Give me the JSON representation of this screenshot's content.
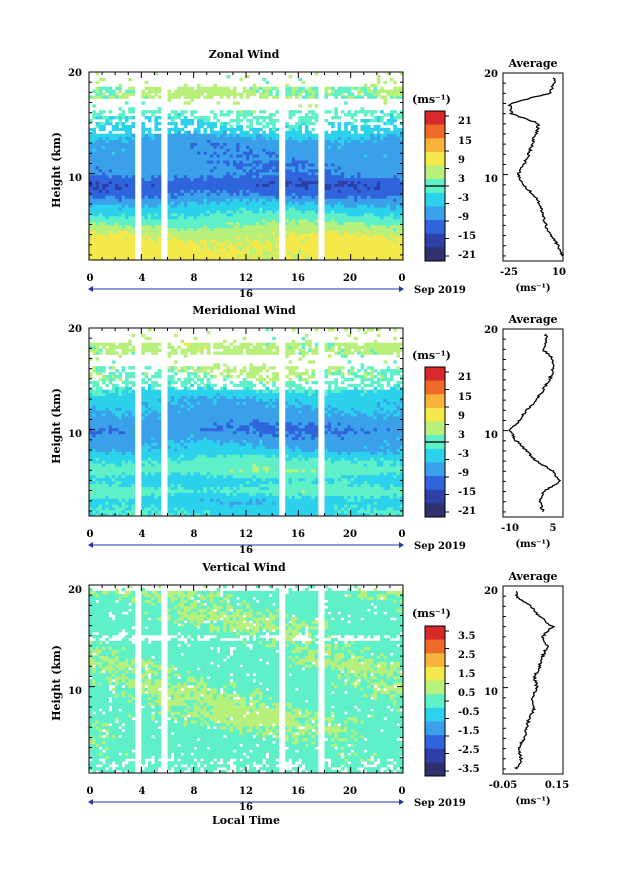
{
  "date_label": "Sep 2019",
  "day_label": "16",
  "xlabel_bottom": "Local Time",
  "time_ticks": [
    "0",
    "4",
    "8",
    "12",
    "16",
    "20",
    "0"
  ],
  "height_axis_label": "Height (km)",
  "height_ticks": [
    "20",
    "10"
  ],
  "unit_label": "(ms⁻¹)",
  "average_title": "Average",
  "panels": [
    {
      "title": "Zonal Wind",
      "colorbar_ticks": [
        "21",
        "15",
        "9",
        "3",
        "-3",
        "-9",
        "-15",
        "-21"
      ],
      "avg_ticks": [
        "-25",
        "10"
      ]
    },
    {
      "title": "Meridional Wind",
      "colorbar_ticks": [
        "21",
        "15",
        "9",
        "3",
        "-3",
        "-9",
        "-15",
        "-21"
      ],
      "avg_ticks": [
        "-10",
        "5"
      ]
    },
    {
      "title": "Vertical Wind",
      "colorbar_ticks": [
        "3.5",
        "2.5",
        "1.5",
        "0.5",
        "-0.5",
        "-1.5",
        "-2.5",
        "-3.5"
      ],
      "avg_ticks": [
        "-0.05",
        "0.15"
      ]
    }
  ],
  "colors": {
    "scale": [
      "#30306e",
      "#2e3fa8",
      "#2f64dc",
      "#3aa0ea",
      "#2cd2ec",
      "#5ff0c8",
      "#b7f07a",
      "#f5e84a",
      "#f7b33a",
      "#ee6a2a",
      "#d7282a"
    ]
  },
  "chart_data": [
    {
      "type": "heatmap",
      "title": "Zonal Wind",
      "xlabel": "",
      "ylabel": "Height (km)",
      "xlim": [
        0,
        24
      ],
      "ylim": [
        1.5,
        20
      ],
      "clim": [
        -24,
        24
      ],
      "missing_time_intervals": [
        [
          3.5,
          4.0
        ],
        [
          5.6,
          6.0
        ],
        [
          14.4,
          14.9
        ],
        [
          17.6,
          17.9
        ]
      ],
      "height_profile_km": [
        2,
        3,
        4,
        5,
        6,
        7,
        8,
        9,
        10,
        11,
        12,
        13,
        14,
        15,
        16,
        17
      ],
      "mean_values": [
        8,
        8,
        6,
        2,
        -2,
        -6,
        -12,
        -15,
        -10,
        -10,
        -9,
        -9,
        -5,
        -2,
        0,
        3
      ],
      "average_profile": {
        "xlim": [
          -25,
          10
        ],
        "height_km": [
          2,
          3,
          4,
          5,
          6,
          7,
          8,
          9,
          10,
          11,
          12,
          13,
          14,
          15,
          16,
          17,
          18,
          19
        ],
        "values": [
          10,
          7,
          3,
          0,
          -2,
          -3,
          -7,
          -13,
          -16,
          -13,
          -10,
          -8,
          -6,
          -4,
          -20,
          -21,
          2,
          5
        ]
      }
    },
    {
      "type": "heatmap",
      "title": "Meridional Wind",
      "xlabel": "",
      "ylabel": "Height (km)",
      "xlim": [
        0,
        24
      ],
      "ylim": [
        1.5,
        20
      ],
      "clim": [
        -24,
        24
      ],
      "missing_time_intervals": [
        [
          3.5,
          4.0
        ],
        [
          5.6,
          6.0
        ],
        [
          14.4,
          14.9
        ],
        [
          17.6,
          17.9
        ]
      ],
      "height_profile_km": [
        2,
        3,
        4,
        5,
        6,
        7,
        8,
        9,
        10,
        11,
        12,
        13,
        14,
        15,
        16,
        17
      ],
      "mean_values": [
        -3,
        -5,
        0,
        -4,
        1,
        -1,
        -6,
        -8,
        -11,
        -9,
        -7,
        -6,
        -2,
        2,
        3,
        4
      ],
      "average_profile": {
        "xlim": [
          -12,
          6
        ],
        "height_km": [
          2,
          3,
          4,
          5,
          6,
          7,
          8,
          9,
          10,
          11,
          12,
          13,
          14,
          15,
          16,
          17,
          18,
          19
        ],
        "values": [
          0,
          -1,
          0,
          5,
          3,
          -2,
          -5,
          -8,
          -10,
          -7,
          -5,
          -2,
          0,
          2,
          3,
          3,
          0,
          1
        ]
      }
    },
    {
      "type": "heatmap",
      "title": "Vertical Wind",
      "xlabel": "Local Time",
      "ylabel": "Height (km)",
      "xlim": [
        0,
        24
      ],
      "ylim": [
        1.5,
        20
      ],
      "clim": [
        -4,
        4
      ],
      "missing_time_intervals": [
        [
          3.5,
          4.0
        ],
        [
          5.6,
          6.0
        ],
        [
          14.4,
          14.9
        ],
        [
          17.6,
          17.9
        ]
      ],
      "height_profile_km": [
        2,
        3,
        4,
        5,
        6,
        7,
        8,
        9,
        10,
        11,
        12,
        13,
        14,
        15,
        16,
        17,
        18,
        19
      ],
      "mean_values": [
        0.0,
        0.1,
        0.1,
        0.2,
        0.3,
        0.4,
        0.3,
        0.3,
        0.3,
        0.2,
        0.3,
        0.2,
        0.2,
        0.2,
        0.3,
        0.3,
        0.2,
        0.3
      ],
      "average_profile": {
        "xlim": [
          -0.05,
          0.18
        ],
        "height_km": [
          2,
          3,
          4,
          5,
          6,
          7,
          8,
          9,
          10,
          11,
          12,
          13,
          14,
          15,
          16,
          17,
          18,
          19
        ],
        "values": [
          0.0,
          0.02,
          0.01,
          0.03,
          0.04,
          0.05,
          0.07,
          0.06,
          0.08,
          0.07,
          0.09,
          0.1,
          0.12,
          0.1,
          0.14,
          0.09,
          0.06,
          0.0
        ]
      }
    }
  ]
}
